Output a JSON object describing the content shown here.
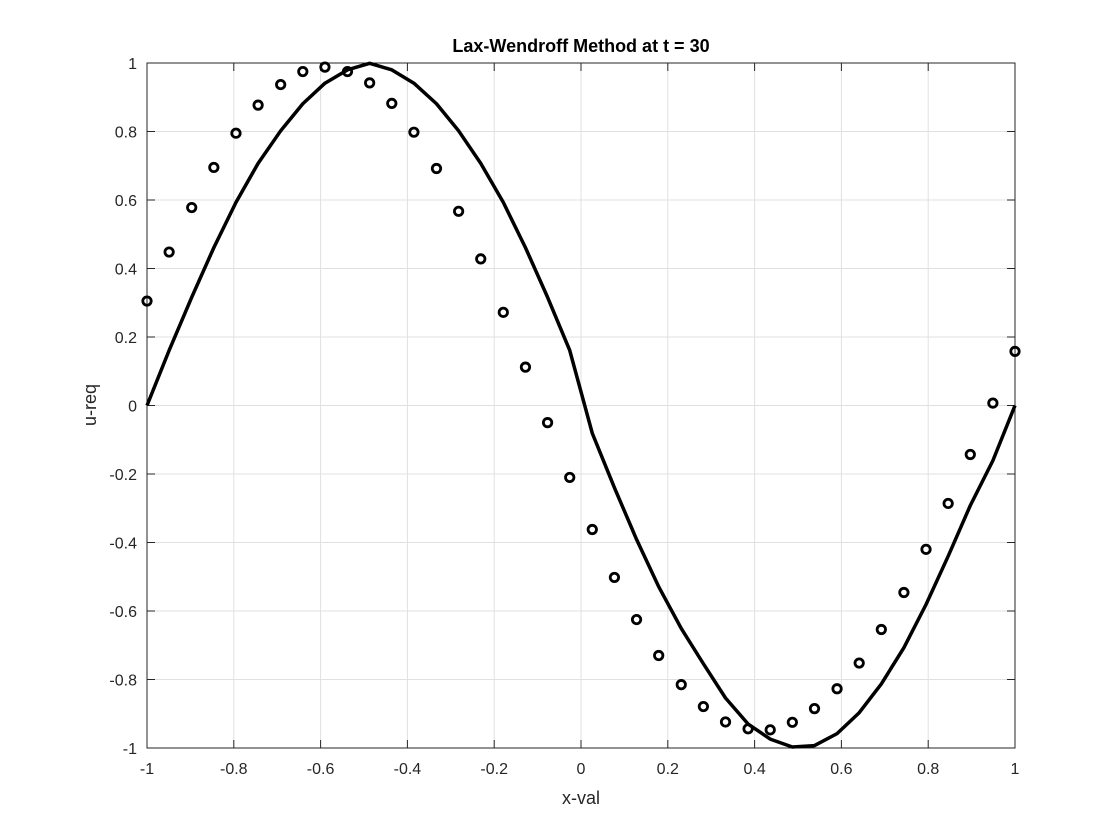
{
  "chart_data": {
    "type": "line",
    "title": "Lax-Wendroff Method at t = 30",
    "xlabel": "x-val",
    "ylabel": "u-req",
    "xlim": [
      -1,
      1
    ],
    "ylim": [
      -1,
      1
    ],
    "grid": true,
    "xticks": [
      -1,
      -0.8,
      -0.6,
      -0.4,
      -0.2,
      0,
      0.2,
      0.4,
      0.6,
      0.8,
      1
    ],
    "yticks": [
      -1,
      -0.8,
      -0.6,
      -0.4,
      -0.2,
      0,
      0.2,
      0.4,
      0.6,
      0.8,
      1
    ],
    "xtick_labels": [
      "-1",
      "-0.8",
      "-0.6",
      "-0.4",
      "-0.2",
      "0",
      "0.2",
      "0.4",
      "0.6",
      "0.8",
      "1"
    ],
    "ytick_labels": [
      "-1",
      "-0.8",
      "-0.6",
      "-0.4",
      "-0.2",
      "0",
      "0.2",
      "0.4",
      "0.6",
      "0.8",
      "1"
    ],
    "colors": {
      "line": "#000000",
      "markers": "#000000",
      "grid": "#e0e0e0",
      "axes": "#262626"
    },
    "series": [
      {
        "style": "solid-line",
        "x": [
          -1.0,
          -0.949,
          -0.897,
          -0.846,
          -0.795,
          -0.744,
          -0.692,
          -0.641,
          -0.59,
          -0.538,
          -0.487,
          -0.436,
          -0.385,
          -0.333,
          -0.282,
          -0.231,
          -0.179,
          -0.128,
          -0.077,
          -0.026,
          0.026,
          0.077,
          0.128,
          0.179,
          0.231,
          0.282,
          0.333,
          0.385,
          0.436,
          0.487,
          0.538,
          0.59,
          0.641,
          0.692,
          0.744,
          0.795,
          0.846,
          0.897,
          0.949,
          1.0
        ],
        "y": [
          0.0,
          0.161,
          0.316,
          0.461,
          0.593,
          0.707,
          0.802,
          0.881,
          0.941,
          0.98,
          0.999,
          0.98,
          0.941,
          0.881,
          0.802,
          0.707,
          0.593,
          0.461,
          0.316,
          0.161,
          -0.081,
          -0.24,
          -0.391,
          -0.529,
          -0.651,
          -0.754,
          -0.854,
          -0.93,
          -0.974,
          -0.997,
          -0.993,
          -0.958,
          -0.897,
          -0.813,
          -0.707,
          -0.581,
          -0.44,
          -0.292,
          -0.161,
          0.0
        ]
      },
      {
        "style": "circle-markers",
        "x": [
          -1.0,
          -0.949,
          -0.897,
          -0.846,
          -0.795,
          -0.744,
          -0.692,
          -0.641,
          -0.59,
          -0.538,
          -0.487,
          -0.436,
          -0.385,
          -0.333,
          -0.282,
          -0.231,
          -0.179,
          -0.128,
          -0.077,
          -0.026,
          0.026,
          0.077,
          0.128,
          0.179,
          0.231,
          0.282,
          0.333,
          0.385,
          0.436,
          0.487,
          0.538,
          0.59,
          0.641,
          0.692,
          0.744,
          0.795,
          0.846,
          0.897,
          0.949,
          1.0
        ],
        "y": [
          0.305,
          0.448,
          0.578,
          0.695,
          0.795,
          0.877,
          0.937,
          0.975,
          0.988,
          0.975,
          0.942,
          0.882,
          0.798,
          0.692,
          0.567,
          0.428,
          0.272,
          0.112,
          -0.05,
          -0.21,
          -0.362,
          -0.502,
          -0.625,
          -0.73,
          -0.815,
          -0.879,
          -0.924,
          -0.944,
          -0.947,
          -0.925,
          -0.885,
          -0.827,
          -0.752,
          -0.654,
          -0.546,
          -0.42,
          -0.286,
          -0.143,
          0.007,
          0.158
        ]
      }
    ]
  }
}
